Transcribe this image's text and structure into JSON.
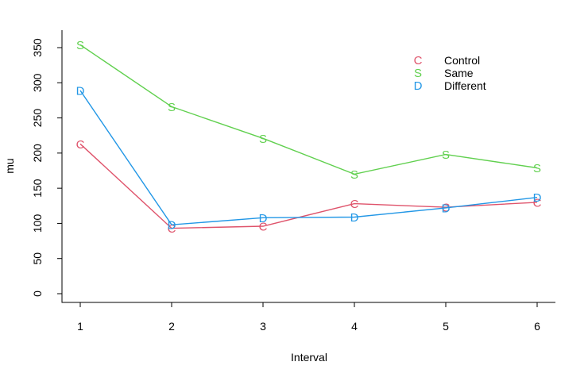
{
  "chart_data": {
    "type": "line",
    "xlabel": "Interval",
    "ylabel": "mu",
    "x": [
      1,
      2,
      3,
      4,
      5,
      6
    ],
    "xlim": [
      1,
      6
    ],
    "ylim": [
      0,
      350
    ],
    "yticks": [
      0,
      50,
      100,
      150,
      200,
      250,
      300,
      350
    ],
    "grid": false,
    "legend_position": "top-right",
    "series": [
      {
        "name": "Control",
        "symbol": "C",
        "color": "#DF536B",
        "values": [
          213,
          93,
          96,
          128,
          123,
          130
        ]
      },
      {
        "name": "Same",
        "symbol": "S",
        "color": "#61D04F",
        "values": [
          354,
          266,
          221,
          170,
          198,
          179
        ]
      },
      {
        "name": "Different",
        "symbol": "D",
        "color": "#2297E6",
        "values": [
          289,
          98,
          108,
          109,
          122,
          137
        ]
      }
    ]
  }
}
